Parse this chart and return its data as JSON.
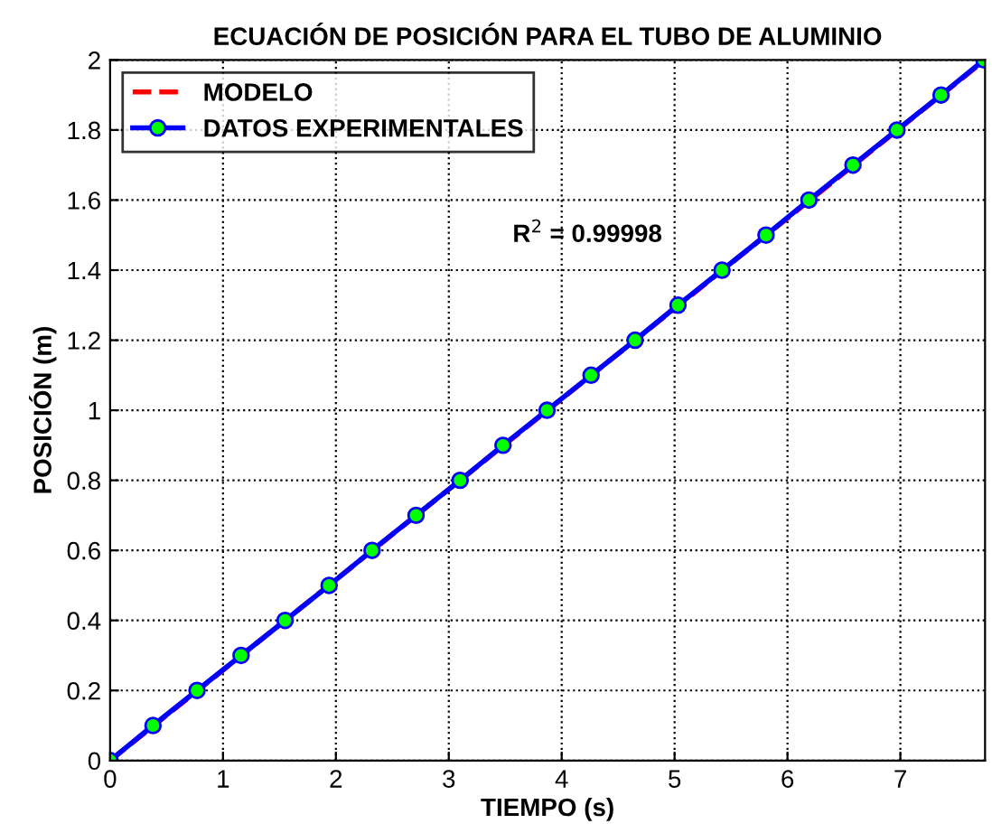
{
  "chart_data": {
    "type": "line",
    "title": "ECUACIÓN DE POSICIÓN PARA EL TUBO DE ALUMINIO",
    "xlabel": "TIEMPO (s)",
    "ylabel": "POSICIÓN (m)",
    "series": [
      {
        "name": "MODELO",
        "color": "#ff0000",
        "line_style": "dashed",
        "marker": "none",
        "x": [
          0,
          7.75
        ],
        "values": [
          0,
          2
        ]
      },
      {
        "name": "DATOS EXPERIMENTALES",
        "color": "#0000ff",
        "line_style": "solid",
        "marker": "circle",
        "x": [
          0,
          0.38,
          0.77,
          1.16,
          1.55,
          1.94,
          2.32,
          2.71,
          3.1,
          3.48,
          3.87,
          4.26,
          4.65,
          5.03,
          5.42,
          5.81,
          6.19,
          6.58,
          6.97,
          7.36,
          7.74
        ],
        "values": [
          0,
          0.1,
          0.2,
          0.3,
          0.4,
          0.5,
          0.6,
          0.7,
          0.8,
          0.9,
          1.0,
          1.1,
          1.2,
          1.3,
          1.4,
          1.5,
          1.6,
          1.7,
          1.8,
          1.9,
          2.0
        ]
      }
    ],
    "annotations": [
      "R$^{2}$ = 0.99998"
    ],
    "xlim": [
      0,
      7.75
    ],
    "xticks": [
      0,
      1,
      2,
      3,
      4,
      5,
      6,
      7
    ],
    "ylim": [
      0,
      2
    ],
    "yticks": [
      0,
      0.2,
      0.4,
      0.6,
      0.8,
      1,
      1.2,
      1.4,
      1.6,
      1.8,
      2
    ],
    "grid": true,
    "legend": "top left"
  }
}
